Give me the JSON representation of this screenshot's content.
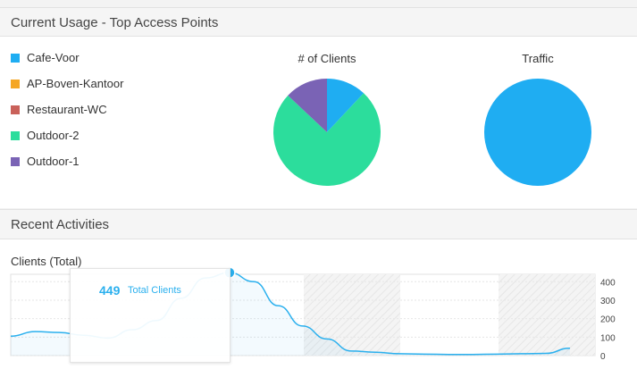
{
  "usage_panel": {
    "title": "Current Usage - Top Access Points"
  },
  "legend": [
    {
      "label": "Cafe-Voor",
      "color": "#1fadf2"
    },
    {
      "label": "AP-Boven-Kantoor",
      "color": "#f5a623"
    },
    {
      "label": "Restaurant-WC",
      "color": "#c9615a"
    },
    {
      "label": "Outdoor-2",
      "color": "#2cdd9c"
    },
    {
      "label": "Outdoor-1",
      "color": "#7a63b5"
    }
  ],
  "clients_pie": {
    "title": "# of Clients"
  },
  "traffic_pie": {
    "title": "Traffic"
  },
  "activities_panel": {
    "title": "Recent Activities"
  },
  "clients_chart": {
    "label": "Clients (Total)"
  },
  "tooltip": {
    "value": "449",
    "label": "Total Clients"
  },
  "chart_data": [
    {
      "type": "pie",
      "title": "# of Clients",
      "labels": [
        "Cafe-Voor",
        "AP-Boven-Kantoor",
        "Restaurant-WC",
        "Outdoor-2",
        "Outdoor-1"
      ],
      "values": [
        12,
        0,
        0,
        75,
        13
      ]
    },
    {
      "type": "pie",
      "title": "Traffic",
      "labels": [
        "Cafe-Voor",
        "AP-Boven-Kantoor",
        "Restaurant-WC",
        "Outdoor-2",
        "Outdoor-1"
      ],
      "values": [
        100,
        0,
        0,
        0,
        0
      ]
    },
    {
      "type": "area",
      "title": "Clients (Total)",
      "values": [
        105,
        130,
        125,
        110,
        95,
        140,
        190,
        310,
        420,
        449,
        400,
        270,
        160,
        90,
        25,
        18,
        10,
        8,
        6,
        6,
        8,
        10,
        12,
        40
      ],
      "ylim": [
        0,
        440
      ],
      "yticks": [
        "400",
        "300",
        "200",
        "100",
        "0"
      ],
      "highlight_index": 9,
      "line_color": "#2bb0ee"
    }
  ]
}
